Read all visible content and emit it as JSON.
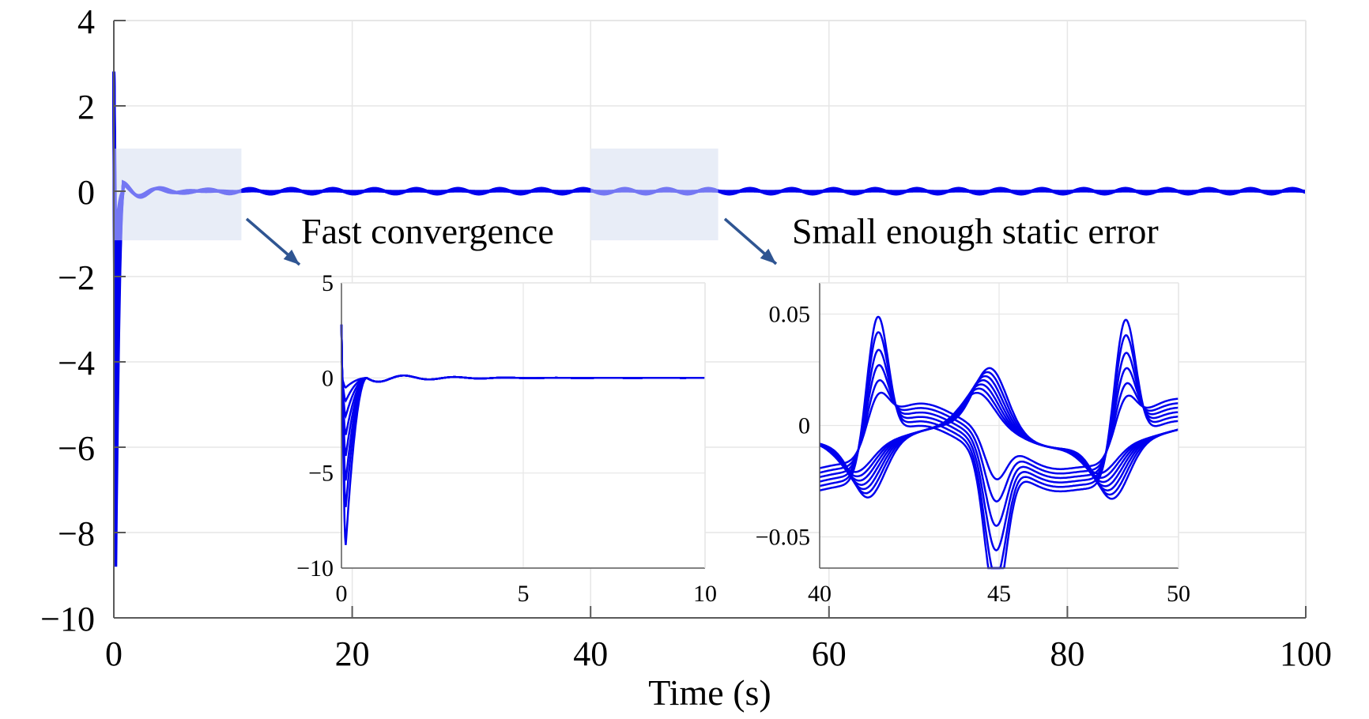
{
  "chart_data": [
    {
      "id": "main",
      "type": "line",
      "title": "",
      "xlabel": "Time (s)",
      "ylabel": "",
      "xlim": [
        0,
        100
      ],
      "ylim": [
        -10,
        4
      ],
      "xticks": [
        0,
        20,
        40,
        60,
        80,
        100
      ],
      "xtick_labels": [
        "0",
        "20",
        "40",
        "60",
        "80",
        "100"
      ],
      "yticks": [
        4,
        2,
        0,
        -2,
        -4,
        -6,
        -8,
        -10
      ],
      "ytick_labels": [
        "4",
        "2",
        "0",
        "−2",
        "−4",
        "−6",
        "−8",
        "−10"
      ],
      "grid": true,
      "series_color": "#0000ee",
      "series_count": 8,
      "series_description": "Tracking errors of multiple agents: initial transient peak about 2.8 and dip about -8.8 near t=0, then converging to 0 with small periodic ripples",
      "initial_peak": 2.8,
      "initial_min": -8.8,
      "steady_ripple_amplitude": 0.064,
      "ripple_period_s": 7,
      "highlight_regions": [
        {
          "x": [
            0,
            10.7
          ],
          "y": [
            -1.15,
            1.0
          ]
        },
        {
          "x": [
            40,
            50.7
          ],
          "y": [
            -1.15,
            1.0
          ]
        }
      ],
      "highlight_color": "#e8edf7"
    },
    {
      "id": "inset-fast",
      "type": "line",
      "xlim": [
        0,
        10
      ],
      "ylim": [
        -10,
        5
      ],
      "xticks": [
        0,
        5,
        10
      ],
      "xtick_labels": [
        "0",
        "5",
        "10"
      ],
      "yticks": [
        5,
        0,
        -5,
        -10
      ],
      "ytick_labels": [
        "5",
        "0",
        "−5",
        "−10"
      ],
      "grid": true,
      "peak_at_t0": 2.8,
      "min_values": [
        -0.5,
        -1.2,
        -2.0,
        -3.0,
        -4.1,
        -5.4,
        -6.8,
        -8.8
      ],
      "min_time_s": 0.12,
      "settle_time_s": 0.7
    },
    {
      "id": "inset-static",
      "type": "line",
      "xlim": [
        40,
        50
      ],
      "ylim": [
        -0.064,
        0.064
      ],
      "xticks": [
        40,
        45,
        50
      ],
      "xtick_labels": [
        "40",
        "45",
        "50"
      ],
      "yticks": [
        0.05,
        0,
        -0.05
      ],
      "ytick_labels": [
        "0.05",
        "0",
        "−0.05"
      ],
      "grid": true,
      "positive_peak_times": [
        41.6,
        48.5
      ],
      "positive_peak_values": [
        0.019,
        0.027,
        0.036,
        0.045,
        0.055,
        0.064
      ],
      "negative_peak_time": 44.9,
      "negative_peak_values": [
        -0.019,
        -0.027,
        -0.036,
        -0.045,
        -0.055,
        -0.064
      ],
      "secondary_peak_time": 44.4,
      "secondary_peak_value": 0.026,
      "secondary_trough_times": [
        41.0,
        47.8
      ],
      "secondary_trough_value": -0.026
    }
  ],
  "annotations": [
    {
      "text": "Fast convergence"
    },
    {
      "text": "Small enough static error"
    }
  ],
  "arrow_color": "#2f5592"
}
